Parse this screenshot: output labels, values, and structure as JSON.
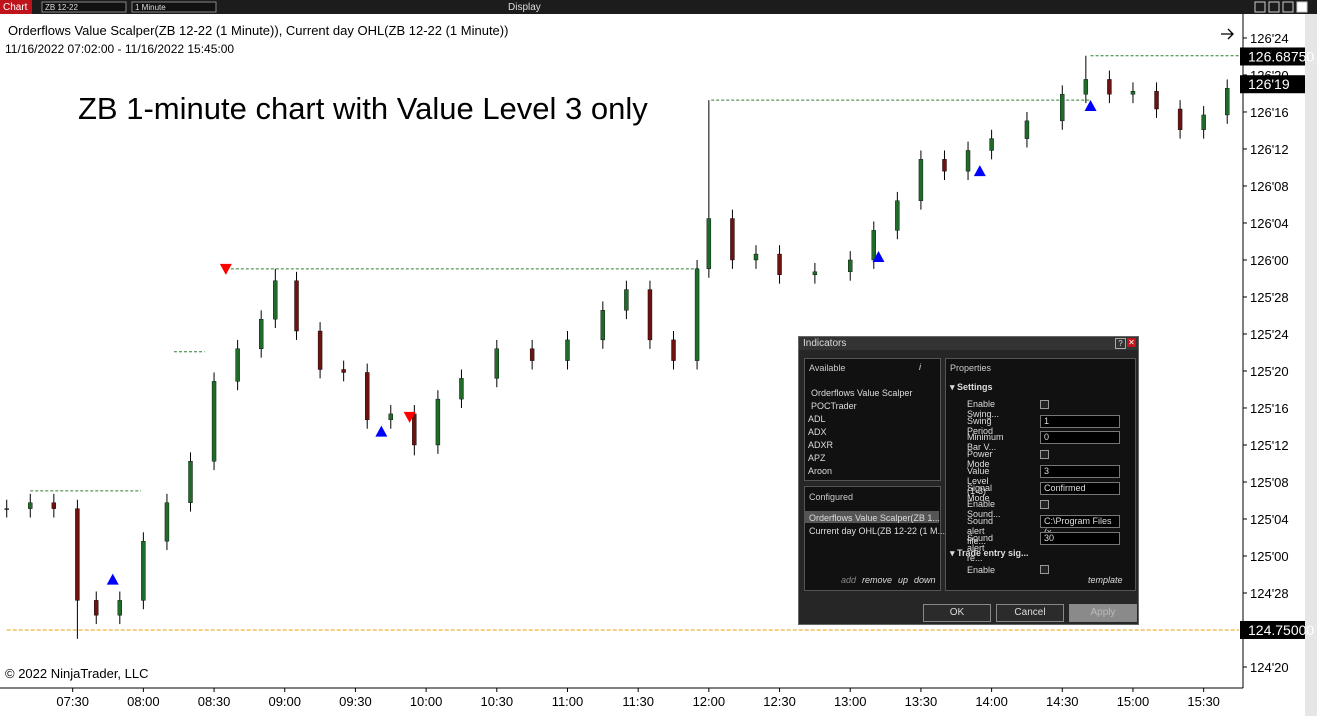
{
  "toolbar": {
    "tab": "Chart",
    "instrument": "ZB 12-22",
    "interval": "1 Minute",
    "menu": "Display"
  },
  "chart_data": {
    "type": "candlestick",
    "title": "Orderflows Value Scalper(ZB 12-22 (1 Minute)), Current day OHL(ZB 12-22 (1 Minute))",
    "subtitle": "11/16/2022 07:02:00 - 11/16/2022 15:45:00",
    "annotation": "ZB 1-minute chart with Value Level 3 only",
    "copyright": "© 2022 NinjaTrader, LLC",
    "x": [
      422,
      432,
      442,
      452,
      460,
      470,
      480,
      490,
      500,
      510,
      520,
      530,
      536,
      545,
      555,
      565,
      575,
      585,
      595,
      605,
      615,
      630,
      645,
      660,
      675,
      685,
      695,
      705,
      715,
      720,
      730,
      740,
      750,
      765,
      780,
      790,
      800,
      810,
      820,
      830,
      840,
      855,
      870,
      880,
      890,
      900,
      910,
      920,
      930,
      940
    ],
    "open": [
      125.16,
      125.16,
      125.18,
      125.16,
      124.85,
      124.8,
      124.85,
      125.05,
      125.18,
      125.32,
      125.59,
      125.7,
      125.8,
      125.93,
      125.76,
      125.63,
      125.62,
      125.46,
      125.48,
      125.375,
      125.53,
      125.6,
      125.7,
      125.66,
      125.73,
      125.83,
      125.9,
      125.73,
      125.66,
      125.97,
      126.14,
      126.0,
      126.02,
      125.95,
      125.96,
      126.0,
      126.1,
      126.2,
      126.34,
      126.3,
      126.37,
      126.41,
      126.47,
      126.56,
      126.61,
      126.56,
      126.57,
      126.51,
      126.44,
      126.49
    ],
    "high": [
      125.19,
      125.21,
      125.21,
      125.19,
      124.88,
      124.88,
      125.08,
      125.21,
      125.35,
      125.62,
      125.73,
      125.83,
      125.97,
      125.96,
      125.79,
      125.66,
      125.65,
      125.51,
      125.51,
      125.56,
      125.63,
      125.73,
      125.73,
      125.76,
      125.86,
      125.93,
      125.93,
      125.76,
      126.0,
      126.54,
      126.17,
      126.05,
      126.05,
      125.99,
      126.03,
      126.13,
      126.23,
      126.37,
      126.37,
      126.4,
      126.44,
      126.5,
      126.59,
      126.69,
      126.64,
      126.6,
      126.6,
      126.54,
      126.52,
      126.61
    ],
    "low": [
      125.13,
      125.13,
      125.13,
      124.72,
      124.77,
      124.77,
      124.82,
      125.02,
      125.15,
      125.29,
      125.56,
      125.67,
      125.77,
      125.73,
      125.6,
      125.59,
      125.43,
      125.43,
      125.34,
      125.345,
      125.5,
      125.57,
      125.63,
      125.63,
      125.7,
      125.8,
      125.7,
      125.63,
      125.63,
      125.94,
      125.97,
      125.97,
      125.92,
      125.92,
      125.93,
      125.97,
      126.07,
      126.17,
      126.27,
      126.27,
      126.34,
      126.38,
      126.44,
      126.53,
      126.53,
      126.53,
      126.48,
      126.41,
      126.41,
      126.46
    ],
    "close": [
      125.16,
      125.18,
      125.16,
      124.85,
      124.8,
      124.85,
      125.05,
      125.18,
      125.32,
      125.59,
      125.7,
      125.8,
      125.93,
      125.76,
      125.63,
      125.62,
      125.46,
      125.48,
      125.375,
      125.53,
      125.6,
      125.7,
      125.66,
      125.73,
      125.83,
      125.9,
      125.73,
      125.66,
      125.97,
      126.14,
      126.0,
      126.02,
      125.95,
      125.96,
      126.0,
      126.1,
      126.2,
      126.34,
      126.3,
      126.37,
      126.41,
      126.47,
      126.56,
      126.61,
      126.56,
      126.57,
      126.51,
      126.44,
      126.49,
      126.58
    ],
    "colors": {
      "up": "#1f6b2a",
      "down": "#6e1111",
      "wick": "#000000",
      "level": "#2e7d32",
      "open_level": "#e8a000",
      "signal_up": "#0000ff",
      "signal_down": "#ff0000"
    },
    "xlim": [
      420,
      945
    ],
    "xticks": [
      {
        "value": 450,
        "label": "07:30"
      },
      {
        "value": 480,
        "label": "08:00"
      },
      {
        "value": 510,
        "label": "08:30"
      },
      {
        "value": 540,
        "label": "09:00"
      },
      {
        "value": 570,
        "label": "09:30"
      },
      {
        "value": 600,
        "label": "10:00"
      },
      {
        "value": 630,
        "label": "10:30"
      },
      {
        "value": 660,
        "label": "11:00"
      },
      {
        "value": 690,
        "label": "11:30"
      },
      {
        "value": 720,
        "label": "12:00"
      },
      {
        "value": 750,
        "label": "12:30"
      },
      {
        "value": 780,
        "label": "13:00"
      },
      {
        "value": 810,
        "label": "13:30"
      },
      {
        "value": 840,
        "label": "14:00"
      },
      {
        "value": 870,
        "label": "14:30"
      },
      {
        "value": 900,
        "label": "15:00"
      },
      {
        "value": 930,
        "label": "15:30"
      }
    ],
    "ylim": [
      124.554,
      126.831
    ],
    "yticks": [
      {
        "value": 126.75,
        "label": "126'24"
      },
      {
        "value": 126.625,
        "label": "126'20"
      },
      {
        "value": 126.5,
        "label": "126'16"
      },
      {
        "value": 126.375,
        "label": "126'12"
      },
      {
        "value": 126.25,
        "label": "126'08"
      },
      {
        "value": 126.125,
        "label": "126'04"
      },
      {
        "value": 126,
        "label": "126'00"
      },
      {
        "value": 125.875,
        "label": "125'28"
      },
      {
        "value": 125.75,
        "label": "125'24"
      },
      {
        "value": 125.625,
        "label": "125'20"
      },
      {
        "value": 125.5,
        "label": "125'16"
      },
      {
        "value": 125.375,
        "label": "125'12"
      },
      {
        "value": 125.25,
        "label": "125'08"
      },
      {
        "value": 125.125,
        "label": "125'04"
      },
      {
        "value": 125,
        "label": "125'00"
      },
      {
        "value": 124.875,
        "label": "124'28"
      },
      {
        "value": 124.625,
        "label": "124'20"
      }
    ],
    "levels": [
      {
        "price": 125.22,
        "from": 432,
        "to": 479
      },
      {
        "price": 125.69,
        "from": 493,
        "to": 506
      },
      {
        "price": 125.97,
        "from": 515,
        "to": 716
      },
      {
        "price": 126.54,
        "from": 721,
        "to": 882
      },
      {
        "price": 126.69,
        "from": 882,
        "to": 945
      }
    ],
    "open_level": {
      "price": 124.75,
      "from": 422,
      "to": 945
    },
    "signals_up": [
      {
        "t": 467,
        "price": 124.92
      },
      {
        "t": 581,
        "price": 125.42
      },
      {
        "t": 792,
        "price": 126.01
      },
      {
        "t": 835,
        "price": 126.3
      },
      {
        "t": 882,
        "price": 126.52
      }
    ],
    "signals_down": [
      {
        "t": 515,
        "price": 125.97
      },
      {
        "t": 593,
        "price": 125.47
      }
    ],
    "price_labels": [
      {
        "value": 126.6875,
        "label": "126.68750"
      },
      {
        "value": 126.59375,
        "label": "126'19"
      },
      {
        "value": 124.75,
        "label": "124.75000"
      }
    ]
  },
  "dialog": {
    "title": "Indicators",
    "available": "Available",
    "info": "i",
    "items": [
      "Orderflows Value Scalper",
      "POCTrader",
      "ADL",
      "ADX",
      "ADXR",
      "APZ",
      "Aroon"
    ],
    "configured": "Configured",
    "configured_items": [
      "Orderflows Value Scalper(ZB 1...",
      "Current day OHL(ZB 12-22 (1 M..."
    ],
    "actions": [
      "add",
      "remove",
      "up",
      "down"
    ],
    "properties": "Properties",
    "settings": "Settings",
    "rows": [
      {
        "label": "Enable Swing..."
      },
      {
        "label": "Swing Period",
        "value": 1
      },
      {
        "label": "Minimum Bar V...",
        "value": 0
      },
      {
        "label": "Power Mode"
      },
      {
        "label": "Value Level (1-3)",
        "value": 3
      },
      {
        "label": "Signal Mode",
        "value": "Confirmed"
      },
      {
        "label": "Enable Sound..."
      },
      {
        "label": "Sound alert file...",
        "value": "C:\\Program Files (x"
      },
      {
        "label": "Sound alert re...",
        "value": 30
      }
    ],
    "group2": "Trade entry sig...",
    "enable": "Enable",
    "template": "template",
    "buttons": [
      "OK",
      "Cancel",
      "Apply"
    ]
  }
}
